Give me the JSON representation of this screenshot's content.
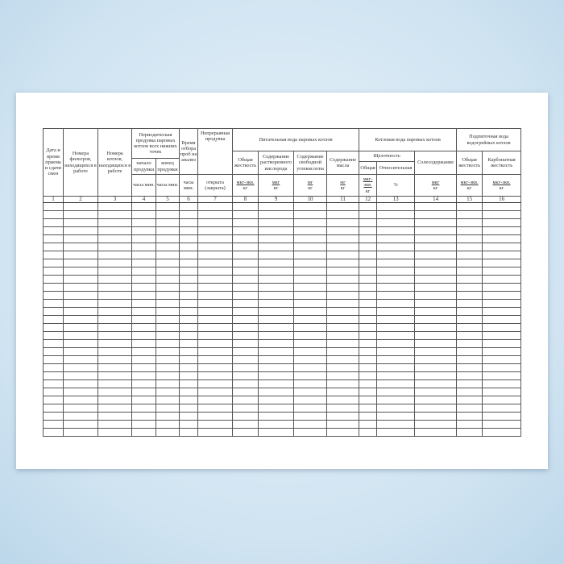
{
  "table": {
    "headers": {
      "c1": "Дата и время приема и сдачи смен",
      "c2": "Номера фильтров, находящихся в работе",
      "c3": "Номера котлов, находящихся в работе",
      "c45": "Периодическая продувка паровых котлов всех нижних точек",
      "c4": "начало продувки",
      "c5": "конец продувки",
      "c6": "Время отбора проб на анализ",
      "c7": "Непрерывная продувка",
      "g1": "Питательная вода паровых котлов",
      "c8": "Общая жесткость",
      "c9": "Содержание растворенного кислорода",
      "c10": "Содержание свободной углекислоты",
      "c11": "Содержание масла",
      "g2": "Котловая вода паровых котлов",
      "c1213": "Щелочность",
      "c12": "Общая",
      "c13": "Относительная",
      "c14": "Солесодержание",
      "g3": "Подпиточная вода водогрейных котлов",
      "c15": "Общая жесткость",
      "c16": "Карбонатная жесткость"
    },
    "units": [
      "часы мин.",
      "часы мин.",
      "часы мин.",
      "открыта (закрыта)",
      "мкг-экв.",
      "мкг",
      "мг",
      "мг",
      "мкг-экв.",
      "%",
      "мкг",
      "мкг-экв.",
      "мкг-экв."
    ],
    "unit_den": [
      "",
      "",
      "",
      "",
      "кг",
      "кг",
      "кг",
      "кг",
      "кг",
      "",
      "кг",
      "кг",
      "кг"
    ],
    "numbers": [
      "1",
      "2",
      "3",
      "4",
      "5",
      "6",
      "7",
      "8",
      "9",
      "10",
      "11",
      "12",
      "13",
      "14",
      "15",
      "16"
    ]
  }
}
